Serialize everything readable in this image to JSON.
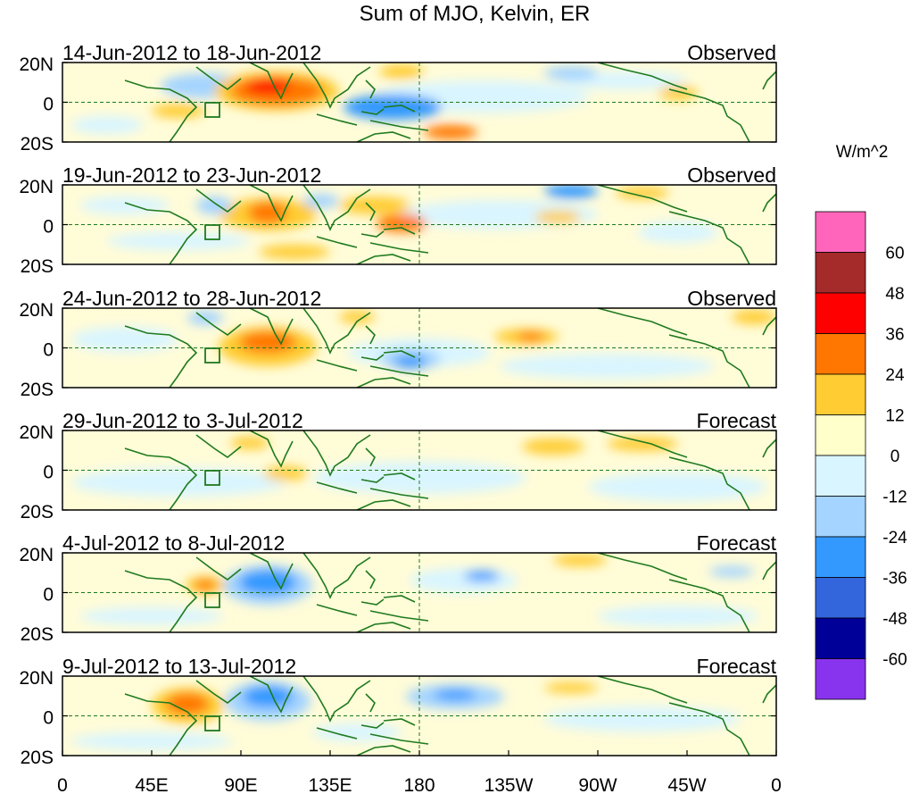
{
  "title": "Sum of MJO, Kelvin, ER",
  "panels": [
    {
      "date_range": "14-Jun-2012 to 18-Jun-2012",
      "status": "Observed"
    },
    {
      "date_range": "19-Jun-2012 to 23-Jun-2012",
      "status": "Observed"
    },
    {
      "date_range": "24-Jun-2012 to 28-Jun-2012",
      "status": "Observed"
    },
    {
      "date_range": "29-Jun-2012 to 3-Jul-2012",
      "status": "Forecast"
    },
    {
      "date_range": "4-Jul-2012 to 8-Jul-2012",
      "status": "Forecast"
    },
    {
      "date_range": "9-Jul-2012 to 13-Jul-2012",
      "status": "Forecast"
    }
  ],
  "lat_labels": [
    "20N",
    "0",
    "20S"
  ],
  "lon_labels": [
    "0",
    "45E",
    "90E",
    "135E",
    "180",
    "135W",
    "90W",
    "45W",
    "0"
  ],
  "colorbar": {
    "units": "W/m^2",
    "tick_labels": [
      "60",
      "48",
      "36",
      "24",
      "12",
      "0",
      "-12",
      "-24",
      "-36",
      "-48",
      "-60"
    ],
    "colors": [
      "#ff66bb",
      "#a52a2a",
      "#ff0000",
      "#ff7700",
      "#ffcc33",
      "#ffffcc",
      "#d9f5ff",
      "#a4d4ff",
      "#3399ff",
      "#3366dd",
      "#000099",
      "#8833ee"
    ]
  },
  "map_colors": {
    "ocean_base": "#fffcd8",
    "land_line": "#1e7a1e",
    "equator_line": "#1e7a1e",
    "frame": "#000000"
  }
}
